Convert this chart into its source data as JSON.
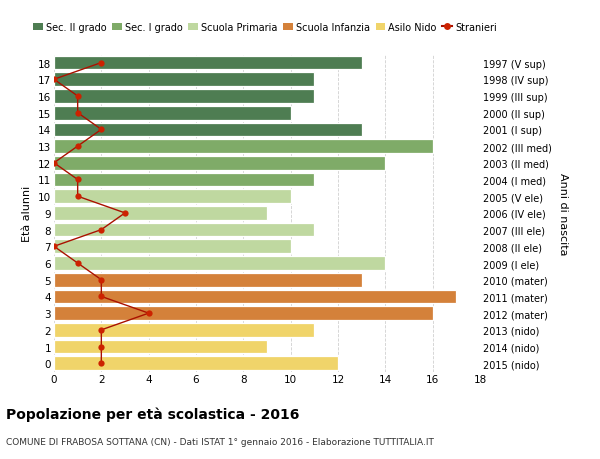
{
  "ages": [
    18,
    17,
    16,
    15,
    14,
    13,
    12,
    11,
    10,
    9,
    8,
    7,
    6,
    5,
    4,
    3,
    2,
    1,
    0
  ],
  "year_labels": [
    "1997 (V sup)",
    "1998 (IV sup)",
    "1999 (III sup)",
    "2000 (II sup)",
    "2001 (I sup)",
    "2002 (III med)",
    "2003 (II med)",
    "2004 (I med)",
    "2005 (V ele)",
    "2006 (IV ele)",
    "2007 (III ele)",
    "2008 (II ele)",
    "2009 (I ele)",
    "2010 (mater)",
    "2011 (mater)",
    "2012 (mater)",
    "2013 (nido)",
    "2014 (nido)",
    "2015 (nido)"
  ],
  "bar_values": [
    13,
    11,
    11,
    10,
    13,
    16,
    14,
    11,
    10,
    9,
    11,
    10,
    14,
    13,
    17,
    16,
    11,
    9,
    12
  ],
  "bar_colors": [
    "#4e7d52",
    "#4e7d52",
    "#4e7d52",
    "#4e7d52",
    "#4e7d52",
    "#7fab68",
    "#7fab68",
    "#7fab68",
    "#bfd8a0",
    "#bfd8a0",
    "#bfd8a0",
    "#bfd8a0",
    "#bfd8a0",
    "#d4813a",
    "#d4813a",
    "#d4813a",
    "#f0d46a",
    "#f0d46a",
    "#f0d46a"
  ],
  "stranieri_values": [
    2,
    0,
    1,
    1,
    2,
    1,
    0,
    1,
    1,
    3,
    2,
    0,
    1,
    2,
    2,
    4,
    2,
    2,
    2
  ],
  "title": "Popolazione per età scolastica - 2016",
  "subtitle": "COMUNE DI FRABOSA SOTTANA (CN) - Dati ISTAT 1° gennaio 2016 - Elaborazione TUTTITALIA.IT",
  "ylabel": "Età alunni",
  "right_ylabel": "Anni di nascita",
  "xlim": [
    0,
    18
  ],
  "ylim": [
    -0.5,
    18.5
  ],
  "legend_labels": [
    "Sec. II grado",
    "Sec. I grado",
    "Scuola Primaria",
    "Scuola Infanzia",
    "Asilo Nido",
    "Stranieri"
  ],
  "legend_colors": [
    "#4e7d52",
    "#7fab68",
    "#bfd8a0",
    "#d4813a",
    "#f0d46a",
    "#cc2200"
  ],
  "bg_color": "#ffffff",
  "grid_color": "#d0d0d0",
  "stranieri_line_color": "#aa1100",
  "stranieri_marker_color": "#cc2200"
}
